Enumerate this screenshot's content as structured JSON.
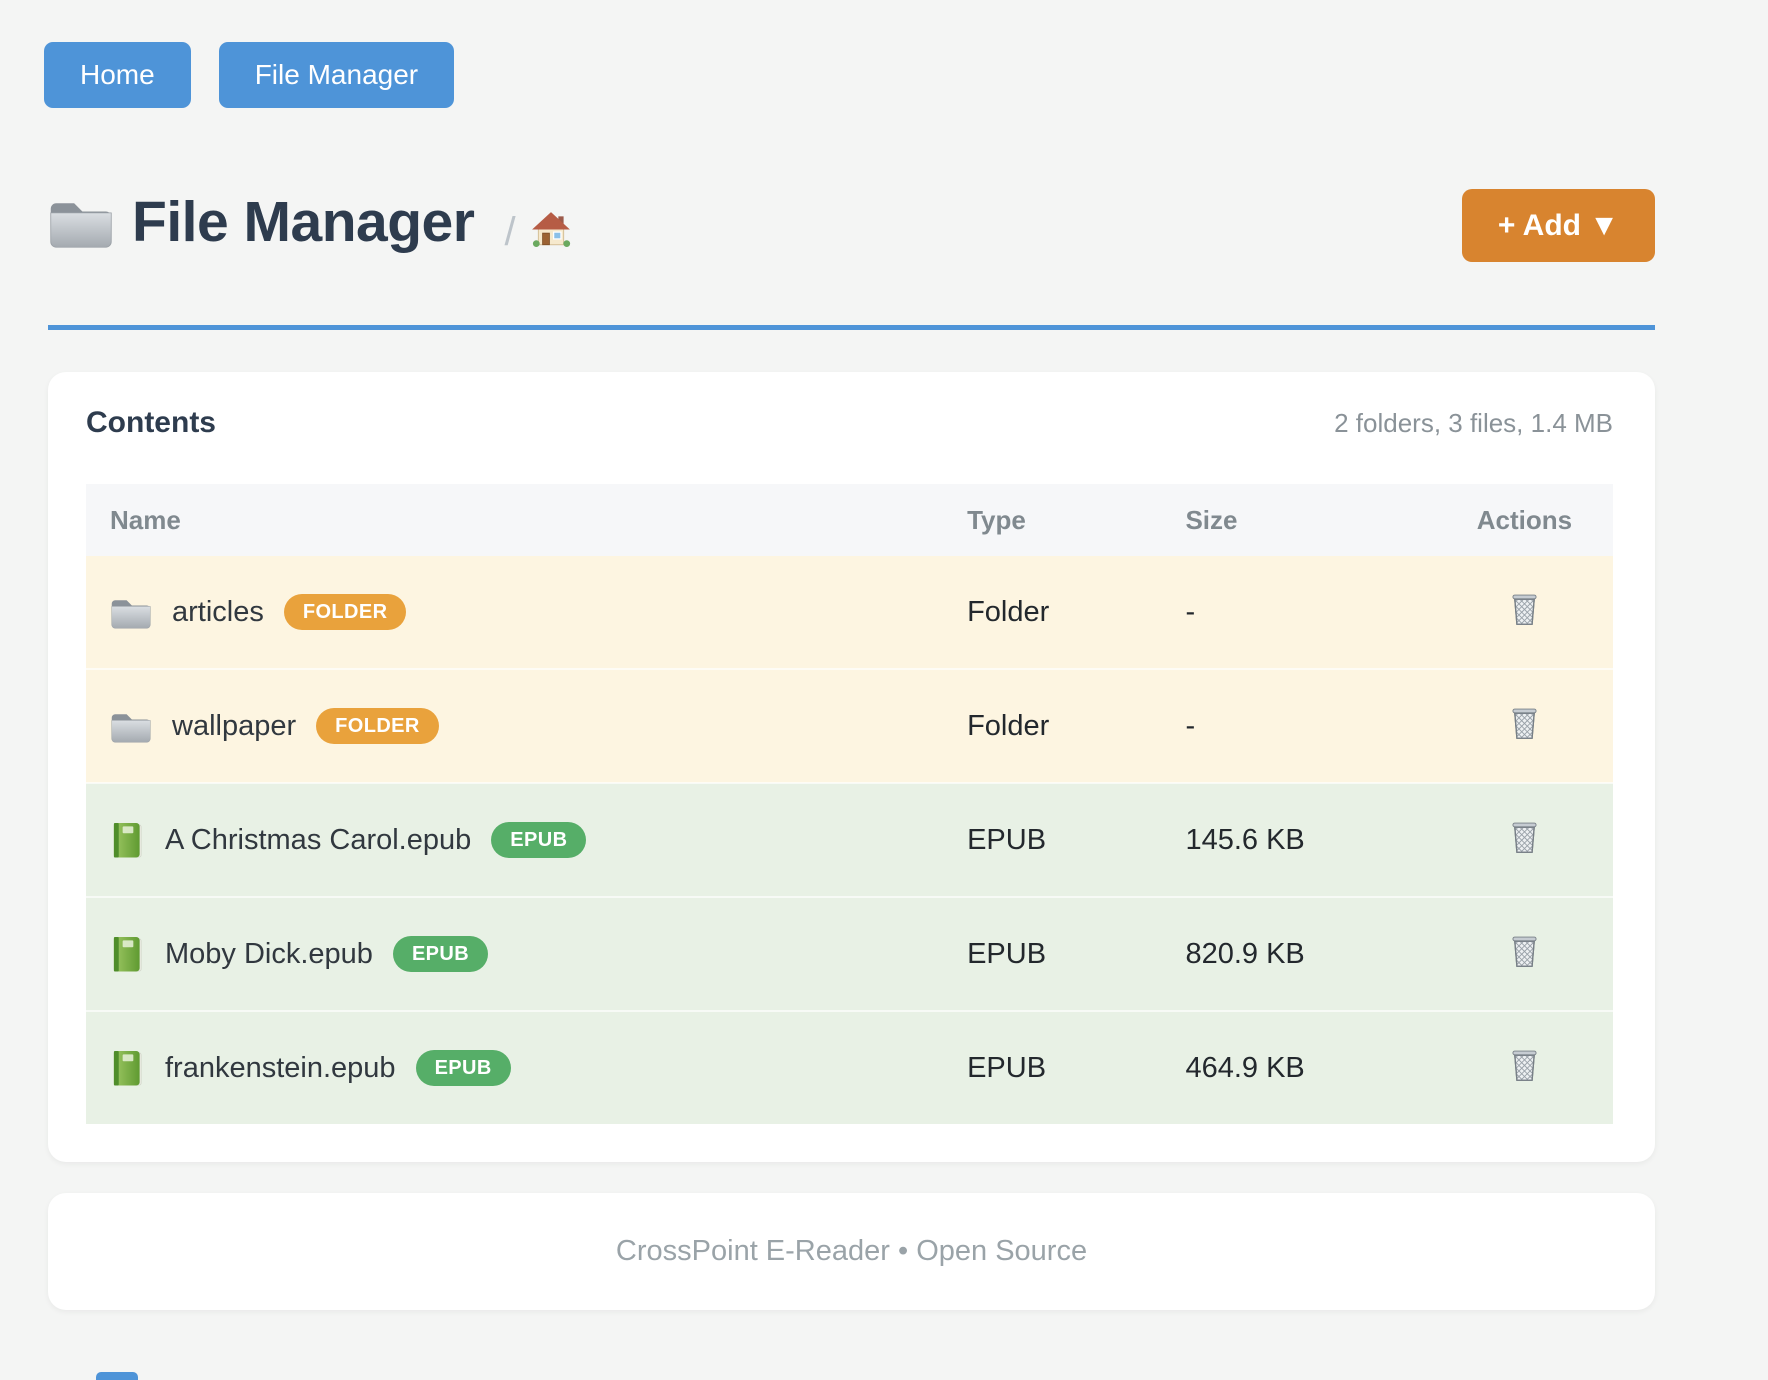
{
  "nav": {
    "buttons": [
      {
        "label": "Home"
      },
      {
        "label": "File Manager"
      }
    ]
  },
  "header": {
    "title": "File Manager",
    "breadcrumb_separator": "/",
    "add_button_label": "+ Add ▼"
  },
  "contents": {
    "heading": "Contents",
    "summary": "2 folders, 3 files, 1.4 MB",
    "columns": [
      "Name",
      "Type",
      "Size",
      "Actions"
    ],
    "rows": [
      {
        "name": "articles",
        "kind": "folder",
        "badge": "FOLDER",
        "type": "Folder",
        "size": "-"
      },
      {
        "name": "wallpaper",
        "kind": "folder",
        "badge": "FOLDER",
        "type": "Folder",
        "size": "-"
      },
      {
        "name": "A Christmas Carol.epub",
        "kind": "epub",
        "badge": "EPUB",
        "type": "EPUB",
        "size": "145.6 KB"
      },
      {
        "name": "Moby Dick.epub",
        "kind": "epub",
        "badge": "EPUB",
        "type": "EPUB",
        "size": "820.9 KB"
      },
      {
        "name": "frankenstein.epub",
        "kind": "epub",
        "badge": "EPUB",
        "type": "EPUB",
        "size": "464.9 KB"
      }
    ]
  },
  "footer": {
    "text": "CrossPoint E-Reader • Open Source"
  },
  "icons": {
    "page_title": "folder-icon",
    "breadcrumb": "house-icon",
    "folder_row": "folder-icon",
    "epub_row": "green-book-icon",
    "delete": "wastebasket-icon"
  },
  "colors": {
    "page_bg": "#f4f5f4",
    "accent_blue": "#4e94d8",
    "accent_orange": "#d8842f",
    "title_color": "#2e3c4e",
    "badge_folder": "#e9a23c",
    "badge_epub": "#56ae68",
    "row_folder_bg": "#fdf5e1",
    "row_epub_bg": "#e8f1e5"
  }
}
